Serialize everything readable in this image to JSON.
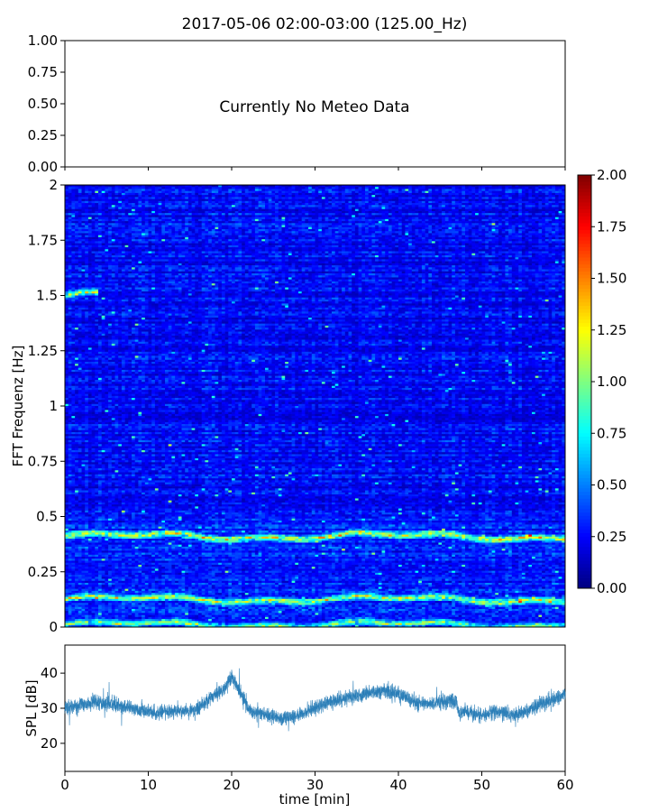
{
  "figure": {
    "title": "2017-05-06 02:00-03:00 (125.00_Hz)"
  },
  "chart_data": [
    {
      "type": "line",
      "panel": "meteo",
      "annotation": "Currently No Meteo Data",
      "xlim": [
        0,
        60
      ],
      "ylim": [
        0,
        1
      ],
      "yticks": [
        "0.00",
        "0.25",
        "0.50",
        "0.75",
        "1.00"
      ],
      "series": []
    },
    {
      "type": "heatmap",
      "panel": "spectrogram",
      "xlim": [
        0,
        60
      ],
      "ylim": [
        0,
        2
      ],
      "ylabel": "FFT Frequenz [Hz]",
      "yticks": [
        "0",
        "0.25",
        "0.5",
        "0.75",
        "1",
        "1.25",
        "1.5",
        "1.75",
        "2"
      ],
      "colormap": "jet",
      "colorbar": {
        "range": [
          0,
          2
        ],
        "ticks": [
          "0.00",
          "0.25",
          "0.50",
          "0.75",
          "1.00",
          "1.25",
          "1.50",
          "1.75",
          "2.00"
        ]
      },
      "background_level": 0.25,
      "bands": [
        {
          "center_hz": 0.41,
          "level": 0.9,
          "x": [
            0,
            60
          ]
        },
        {
          "center_hz": 0.125,
          "level": 0.8,
          "x": [
            0,
            60
          ]
        },
        {
          "center_hz": 0.01,
          "level": 0.7,
          "x": [
            0,
            60
          ]
        },
        {
          "center_hz": 1.5,
          "level": 0.9,
          "x": [
            0,
            4
          ]
        }
      ]
    },
    {
      "type": "line",
      "panel": "spl",
      "xlabel": "time [min]",
      "ylabel": "SPL [dB]",
      "xlim": [
        0,
        60
      ],
      "ylim": [
        12,
        48
      ],
      "xticks": [
        "0",
        "10",
        "20",
        "30",
        "40",
        "50",
        "60"
      ],
      "yticks": [
        "20",
        "30",
        "40"
      ],
      "color": "#1f77b4",
      "series": [
        {
          "x": [
            0,
            2,
            4,
            6,
            8,
            10,
            12,
            14,
            16,
            18,
            19,
            20,
            21,
            22,
            24,
            26,
            28,
            30,
            32,
            34,
            36,
            38,
            40,
            42,
            44,
            46,
            47,
            47.2,
            48,
            50,
            52,
            54,
            56,
            58,
            60
          ],
          "values": [
            30,
            31,
            32,
            31,
            30,
            29,
            29,
            29,
            30,
            34,
            35,
            39,
            35,
            30,
            28,
            27,
            28,
            30,
            32,
            33,
            34,
            35,
            34,
            32,
            31,
            32,
            32,
            29,
            29,
            28,
            29,
            28,
            30,
            32,
            34
          ]
        }
      ]
    }
  ]
}
